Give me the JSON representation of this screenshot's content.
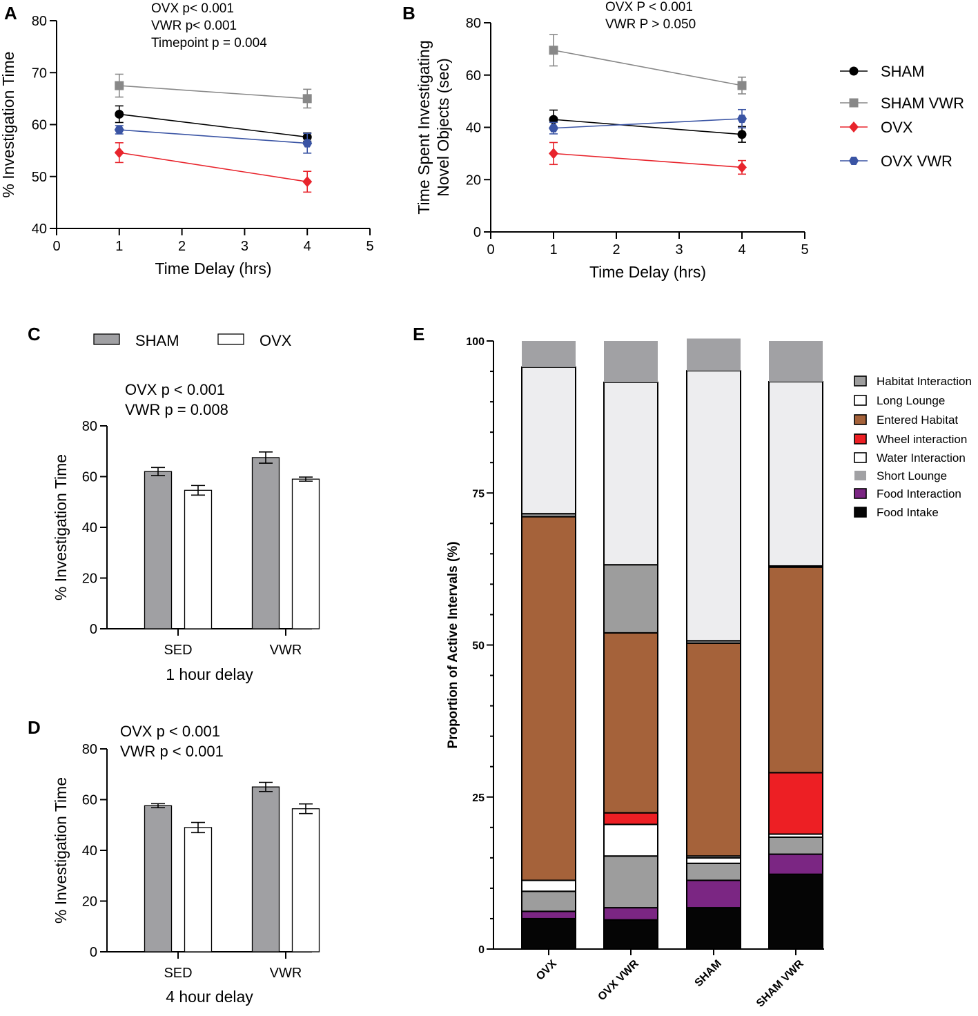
{
  "chart_data": [
    {
      "panel": "A",
      "type": "line",
      "ylabel": "% Investigation Time",
      "xlabel": "Time Delay (hrs)",
      "xlim": [
        0,
        5
      ],
      "ylim": [
        40,
        80
      ],
      "xticks": [
        0,
        1,
        2,
        3,
        4,
        5
      ],
      "yticks": [
        40,
        50,
        60,
        70,
        80
      ],
      "annotations": [
        "OVX p< 0.001",
        "VWR p< 0.001",
        "Timepoint p = 0.004"
      ],
      "x": [
        1,
        4
      ],
      "series": [
        {
          "name": "SHAM",
          "color": "#000000",
          "marker": "circle",
          "values": [
            62.0,
            57.6
          ],
          "errors": [
            1.6,
            0.8
          ]
        },
        {
          "name": "SHAM VWR",
          "color": "#888888",
          "marker": "square",
          "values": [
            67.5,
            65.0
          ],
          "errors": [
            2.2,
            1.8
          ]
        },
        {
          "name": "OVX",
          "color": "#e8242c",
          "marker": "diamond",
          "values": [
            54.6,
            49.0
          ],
          "errors": [
            1.9,
            2.0
          ]
        },
        {
          "name": "OVX VWR",
          "color": "#3a54a4",
          "marker": "hexagon",
          "values": [
            59.0,
            56.4
          ],
          "errors": [
            0.8,
            1.9
          ]
        }
      ]
    },
    {
      "panel": "B",
      "type": "line",
      "ylabel": [
        "Time Spent Investigating",
        "Novel Objects (sec)"
      ],
      "xlabel": "Time Delay (hrs)",
      "xlim": [
        0,
        5
      ],
      "ylim": [
        0,
        80
      ],
      "xticks": [
        0,
        1,
        2,
        3,
        4,
        5
      ],
      "yticks": [
        0,
        20,
        40,
        60,
        80
      ],
      "annotations": [
        "OVX P < 0.001",
        "VWR P > 0.050"
      ],
      "x": [
        1,
        4
      ],
      "series": [
        {
          "name": "SHAM",
          "color": "#000000",
          "marker": "circle",
          "values": [
            43.0,
            37.3
          ],
          "errors": [
            3.6,
            3.0
          ]
        },
        {
          "name": "SHAM VWR",
          "color": "#888888",
          "marker": "square",
          "values": [
            69.5,
            56.0
          ],
          "errors": [
            6.0,
            3.2
          ]
        },
        {
          "name": "OVX",
          "color": "#e8242c",
          "marker": "diamond",
          "values": [
            30.0,
            24.7
          ],
          "errors": [
            4.2,
            2.6
          ]
        },
        {
          "name": "OVX VWR",
          "color": "#3a54a4",
          "marker": "hexagon",
          "values": [
            39.7,
            43.3
          ],
          "errors": [
            2.2,
            3.5
          ]
        }
      ]
    },
    {
      "panel": "C",
      "type": "bar",
      "title": "1 hour delay",
      "ylabel": "% Investigation Time",
      "ylim": [
        0,
        80
      ],
      "yticks": [
        0,
        20,
        40,
        60,
        80
      ],
      "categories": [
        "SED",
        "VWR"
      ],
      "annotations": [
        "OVX p < 0.001",
        "VWR p = 0.008"
      ],
      "series": [
        {
          "name": "SHAM",
          "color": "#a0a0a3",
          "values": [
            62.0,
            67.5
          ],
          "errors": [
            1.6,
            2.2
          ]
        },
        {
          "name": "OVX",
          "color": "#ffffff",
          "values": [
            54.6,
            59.0
          ],
          "errors": [
            1.9,
            0.8
          ]
        }
      ]
    },
    {
      "panel": "D",
      "type": "bar",
      "title": "4 hour delay",
      "ylabel": "% Investigation Time",
      "ylim": [
        0,
        80
      ],
      "yticks": [
        0,
        20,
        40,
        60,
        80
      ],
      "categories": [
        "SED",
        "VWR"
      ],
      "annotations": [
        "OVX p < 0.001",
        "VWR p < 0.001"
      ],
      "series": [
        {
          "name": "SHAM",
          "color": "#a0a0a3",
          "values": [
            57.6,
            65.0
          ],
          "errors": [
            0.8,
            1.8
          ]
        },
        {
          "name": "OVX",
          "color": "#ffffff",
          "values": [
            49.0,
            56.4
          ],
          "errors": [
            2.0,
            1.9
          ]
        }
      ]
    },
    {
      "panel": "E",
      "type": "bar",
      "stacked": true,
      "ylabel": "Proportion of Active Intervals (%)",
      "ylim": [
        0,
        100
      ],
      "yticks": [
        0,
        25,
        50,
        75,
        100
      ],
      "categories": [
        "OVX",
        "OVX VWR",
        "SHAM",
        "SHAM VWR"
      ],
      "legend": [
        "Habitat Interaction",
        "Long Lounge",
        "Entered Habitat",
        "Wheel interaction",
        "Water Interaction",
        "Short Lounge",
        "Food Interaction",
        "Food Intake"
      ],
      "series": [
        {
          "name": "Food Intake",
          "color": "#050505",
          "values": [
            5.0,
            4.8,
            6.8,
            12.3
          ]
        },
        {
          "name": "Food Interaction",
          "color": "#7b2683",
          "values": [
            1.2,
            2.0,
            4.5,
            3.3
          ]
        },
        {
          "name": "Habitat Interaction",
          "color": "#9d9d9d",
          "values": [
            3.3,
            8.5,
            2.8,
            2.8
          ]
        },
        {
          "name": "Water Interaction",
          "color": "#ffffff",
          "values": [
            1.8,
            5.2,
            0.9,
            0.5
          ]
        },
        {
          "name": "Wheel interaction",
          "color": "#ed1f24",
          "values": [
            0.0,
            1.9,
            0.0,
            10.1
          ]
        },
        {
          "name": "Long Lounge",
          "color": "#ffffff",
          "values": [
            0.0,
            0.0,
            0.3,
            0.0
          ]
        },
        {
          "name": "Entered Habitat",
          "color": "#a5623a",
          "values": [
            59.8,
            29.6,
            35.0,
            33.8
          ]
        },
        {
          "name": "Habitat Interaction",
          "color": "#9d9d9d",
          "values": [
            0.5,
            11.2,
            0.4,
            0.2
          ]
        },
        {
          "name": "Long Lounge",
          "color": "#ededef",
          "values": [
            24.1,
            30.0,
            44.4,
            30.3
          ]
        },
        {
          "name": "Short Lounge",
          "color": "#a1a1a4",
          "values": [
            4.3,
            6.8,
            5.3,
            6.7
          ]
        }
      ]
    }
  ]
}
